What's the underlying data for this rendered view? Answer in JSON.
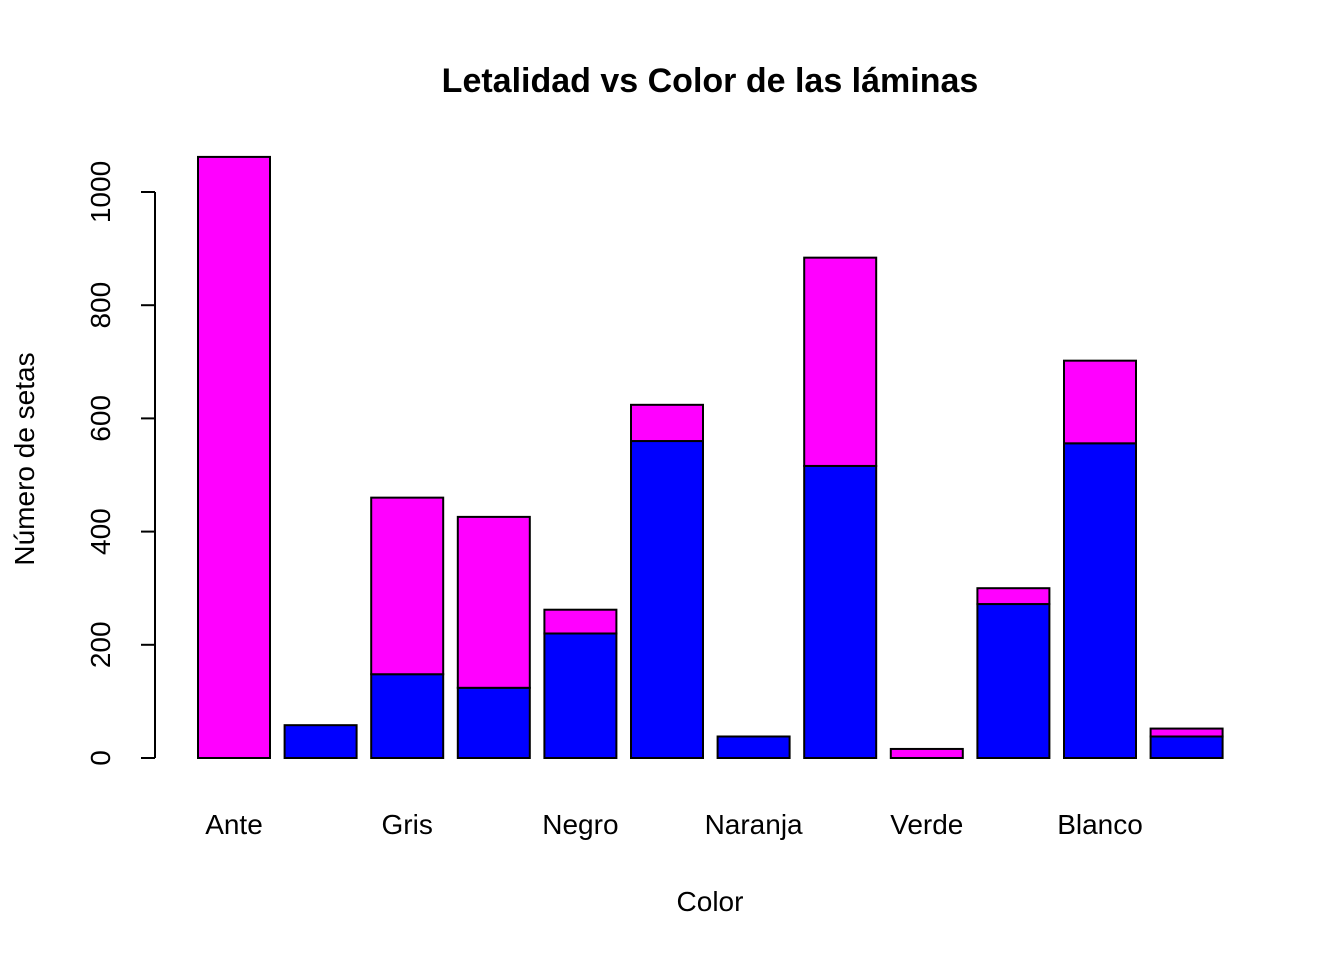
{
  "chart_data": {
    "type": "bar",
    "stacked": true,
    "title": "Letalidad vs Color de las láminas",
    "xlabel": "Color",
    "ylabel": "Número de setas",
    "ylim": [
      0,
      1070
    ],
    "yticks": [
      0,
      200,
      400,
      600,
      800,
      1000
    ],
    "grid": false,
    "legend": "none",
    "categories": [
      "Ante",
      "",
      "Gris",
      "",
      "Negro",
      "",
      "Naranja",
      "",
      "Verde",
      "",
      "Blanco",
      ""
    ],
    "series": [
      {
        "color": "#0000FF",
        "values": [
          0,
          58,
          148,
          124,
          220,
          560,
          38,
          516,
          0,
          272,
          556,
          38
        ]
      },
      {
        "color": "#FF00FF",
        "values": [
          1062,
          0,
          312,
          302,
          42,
          64,
          0,
          368,
          16,
          28,
          146,
          14
        ]
      }
    ]
  }
}
